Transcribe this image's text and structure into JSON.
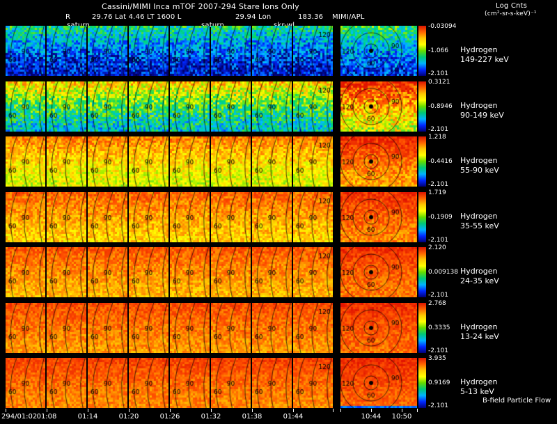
{
  "header": {
    "title": "Cassini/MIMI Inca mTOF  2007-294   Stare   Ions Only",
    "log_label": "Log Cnts",
    "log_units": "(cm²-sr-s-keV)⁻¹",
    "r_label": "R",
    "ephemeris": "29.76 Lat 4.46 LT 1600 L",
    "lon_label": "29.94 Lon",
    "lon_value": "183.36",
    "source": "MIMI/APL",
    "annotations": [
      "saturn",
      "saturn",
      "skr-wl"
    ]
  },
  "rows": [
    {
      "species": "Hydrogen",
      "energy": "149-227 keV",
      "cb_top": "-0.03094",
      "cb_mid": "-1.066",
      "cb_bottom": "-2.101"
    },
    {
      "species": "Hydrogen",
      "energy": "90-149 keV",
      "cb_top": "0.3121",
      "cb_mid": "-0.8946",
      "cb_bottom": "-2.101"
    },
    {
      "species": "Hydrogen",
      "energy": "55-90 keV",
      "cb_top": "1.218",
      "cb_mid": "-0.4416",
      "cb_bottom": "-2.101"
    },
    {
      "species": "Hydrogen",
      "energy": "35-55 keV",
      "cb_top": "1.719",
      "cb_mid": "-0.1909",
      "cb_bottom": "-2.101"
    },
    {
      "species": "Hydrogen",
      "energy": "24-35 keV",
      "cb_top": "2.120",
      "cb_mid": "0.009138",
      "cb_bottom": "-2.101"
    },
    {
      "species": "Hydrogen",
      "energy": "13-24 keV",
      "cb_top": "2.768",
      "cb_mid": "0.3335",
      "cb_bottom": "-2.101"
    },
    {
      "species": "Hydrogen",
      "energy": "5-13 keV",
      "cb_top": "3.935",
      "cb_mid": "0.9169",
      "cb_bottom": "-2.101"
    }
  ],
  "contour_labels": [
    "60",
    "90",
    "120"
  ],
  "time_axis": [
    "294/01:02",
    "01:08",
    "01:14",
    "01:20",
    "01:26",
    "01:32",
    "01:38",
    "01:44",
    "10:44",
    "10:50"
  ],
  "footer_note": "B-field Particle Flow",
  "colors": {
    "background": "#000000",
    "text": "#ffffff",
    "colorbar_stops": [
      "#dc1400",
      "#ff6400",
      "#ffc800",
      "#ffff00",
      "#64dc00",
      "#00c878",
      "#00b4ff",
      "#0028ff",
      "#000078"
    ]
  },
  "appearance": {
    "row_styles": [
      {
        "base": 0.06,
        "grad": 0.32,
        "noise": 0.15,
        "wide_bonus": 0.05
      },
      {
        "base": 0.3,
        "grad": 0.38,
        "noise": 0.16,
        "wide_bonus": 0.28
      },
      {
        "base": 0.58,
        "grad": 0.22,
        "noise": 0.1,
        "wide_bonus": 0.16
      },
      {
        "base": 0.68,
        "grad": 0.16,
        "noise": 0.09,
        "wide_bonus": 0.1
      },
      {
        "base": 0.72,
        "grad": 0.14,
        "noise": 0.08,
        "wide_bonus": 0.08
      },
      {
        "base": 0.76,
        "grad": 0.12,
        "noise": 0.075,
        "wide_bonus": 0.06
      },
      {
        "base": 0.78,
        "grad": 0.12,
        "noise": 0.07,
        "wide_bonus": 0.05
      }
    ]
  },
  "chart_data": {
    "type": "heatmap",
    "title": "Cassini/MIMI Inca mTOF 2007-294 Stare Ions Only",
    "colorbar_label": "Log Cnts (cm²-sr-s-keV)⁻¹",
    "colormap": "rainbow",
    "legend_position": "right",
    "x_tick_labels": [
      "294/01:02",
      "01:08",
      "01:14",
      "01:20",
      "01:26",
      "01:32",
      "01:38",
      "01:44",
      "10:44",
      "10:50"
    ],
    "panels_per_row": 9,
    "contour_levels": [
      60,
      90,
      120
    ],
    "rows": [
      {
        "channel": "Hydrogen 149-227 keV",
        "colorbar_max": -0.03094,
        "colorbar_mid": -1.066,
        "colorbar_min": -2.101
      },
      {
        "channel": "Hydrogen 90-149 keV",
        "colorbar_max": 0.3121,
        "colorbar_mid": -0.8946,
        "colorbar_min": -2.101
      },
      {
        "channel": "Hydrogen 55-90 keV",
        "colorbar_max": 1.218,
        "colorbar_mid": -0.4416,
        "colorbar_min": -2.101
      },
      {
        "channel": "Hydrogen 35-55 keV",
        "colorbar_max": 1.719,
        "colorbar_mid": -0.1909,
        "colorbar_min": -2.101
      },
      {
        "channel": "Hydrogen 24-35 keV",
        "colorbar_max": 2.12,
        "colorbar_mid": 0.009138,
        "colorbar_min": -2.101
      },
      {
        "channel": "Hydrogen 13-24 keV",
        "colorbar_max": 2.768,
        "colorbar_mid": 0.3335,
        "colorbar_min": -2.101
      },
      {
        "channel": "Hydrogen 5-13 keV",
        "colorbar_max": 3.935,
        "colorbar_mid": 0.9169,
        "colorbar_min": -2.101
      }
    ],
    "ephemeris": {
      "R": 29.76,
      "Lat": 4.46,
      "LT": "1600",
      "L": 29.94,
      "Lon": 183.36
    },
    "annotations": [
      "saturn",
      "saturn",
      "skr-wl"
    ],
    "note": "B-field Particle Flow"
  }
}
